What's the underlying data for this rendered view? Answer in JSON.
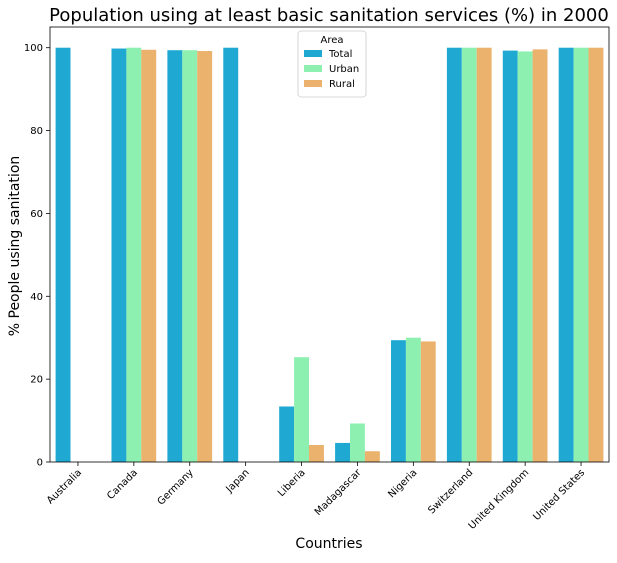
{
  "chart_data": {
    "type": "bar",
    "title": "Population using at least basic sanitation services (%) in 2000",
    "xlabel": "Countries",
    "ylabel": "% People using sanitation",
    "ylim": [
      0,
      105
    ],
    "yticks": [
      0,
      20,
      40,
      60,
      80,
      100
    ],
    "grid": false,
    "legend": {
      "title": "Area",
      "position": "top-center"
    },
    "categories": [
      "Australia",
      "Canada",
      "Germany",
      "Japan",
      "Liberia",
      "Madagascar",
      "Nigeria",
      "Switzerland",
      "United Kingdom",
      "United States"
    ],
    "series": [
      {
        "name": "Total",
        "color": "#1ea8d2",
        "values": [
          100,
          99.8,
          99.4,
          100,
          13.4,
          4.6,
          29.4,
          100,
          99.3,
          100
        ]
      },
      {
        "name": "Urban",
        "color": "#8ef0b0",
        "values": [
          null,
          100,
          99.4,
          null,
          25.3,
          9.3,
          30.0,
          100,
          99.1,
          100
        ]
      },
      {
        "name": "Rural",
        "color": "#ebb26d",
        "values": [
          null,
          99.5,
          99.2,
          null,
          4.1,
          2.6,
          29.1,
          100,
          99.6,
          100
        ]
      }
    ]
  }
}
